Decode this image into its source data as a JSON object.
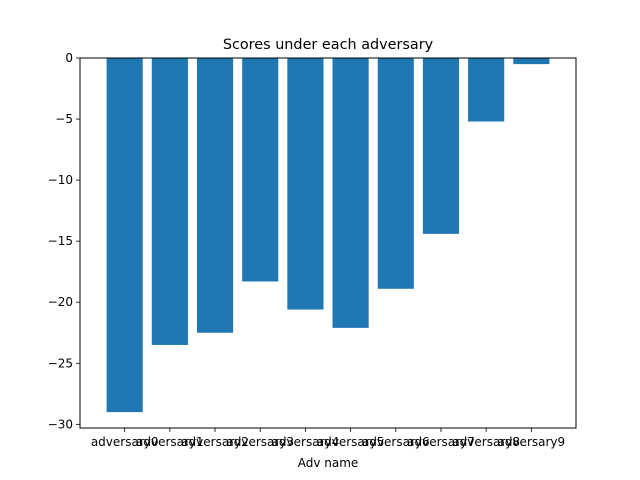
{
  "chart_data": {
    "type": "bar",
    "title": "Scores under each adversary",
    "xlabel": "Adv name",
    "ylabel": "",
    "categories": [
      "adversary0",
      "adversary1",
      "adversary2",
      "adversary3",
      "adversary4",
      "adversary5",
      "adversary6",
      "adversary7",
      "adversary8",
      "adversary9"
    ],
    "values": [
      -29.0,
      -23.5,
      -22.5,
      -18.3,
      -20.6,
      -22.1,
      -18.9,
      -14.4,
      -5.2,
      -0.5
    ],
    "ylim": [
      -30.3,
      0.0
    ],
    "yticks": [
      0,
      -5,
      -10,
      -15,
      -20,
      -25,
      -30
    ],
    "ytick_labels": [
      "0",
      "−5",
      "−10",
      "−15",
      "−20",
      "−25",
      "−30"
    ],
    "grid": false,
    "legend": "none",
    "bar_color": "#1f77b4"
  }
}
